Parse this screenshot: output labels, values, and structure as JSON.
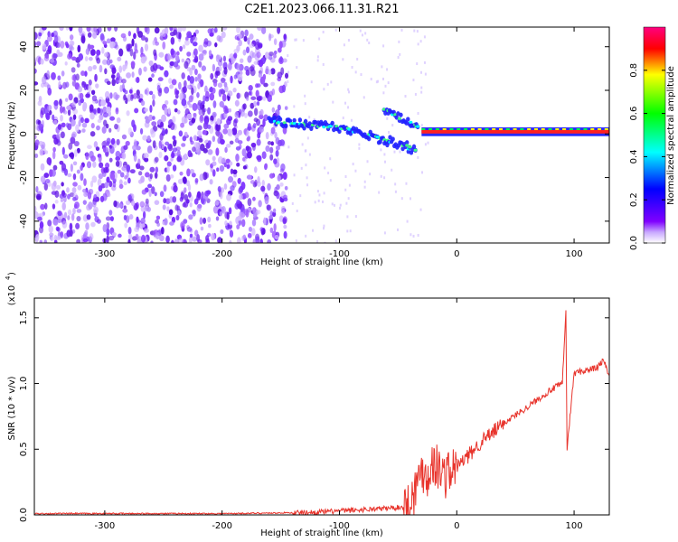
{
  "title": "C2E1.2023.066.11.31.R21",
  "chart_data": [
    {
      "type": "heatmap",
      "xlabel": "Height of straight line (km)",
      "ylabel": "Frequency (Hz)",
      "xlim": [
        -360,
        130
      ],
      "ylim": [
        -50,
        49
      ],
      "xticks": [
        -300,
        -200,
        -100,
        0,
        100
      ],
      "yticks": [
        -40,
        -20,
        0,
        20,
        40
      ],
      "description_free": true,
      "tracks": [
        {
          "x": [
            -160,
            -140,
            -120,
            -100,
            -80,
            -60,
            -45,
            -35
          ],
          "y": [
            6,
            5,
            4,
            3,
            0,
            -3,
            -5,
            -8
          ]
        },
        {
          "x": [
            -62,
            -50,
            -40,
            -32
          ],
          "y": [
            11,
            8,
            5,
            3
          ]
        },
        {
          "x": [
            -30,
            -20,
            -10,
            0,
            20,
            50,
            80,
            100,
            130
          ],
          "y": [
            1,
            1,
            1,
            1,
            1,
            1,
            1,
            1,
            1
          ]
        }
      ],
      "colorbar": {
        "label": "Normalized spectral amplitude",
        "ticks": [
          "0.0",
          "0.2",
          "0.4",
          "0.6",
          "0.8"
        ],
        "range": [
          0,
          1
        ],
        "colormap": [
          "#ffffff",
          "#8000ff",
          "#0000ff",
          "#00ffff",
          "#00ff00",
          "#ffff00",
          "#ff0000",
          "#ff0080"
        ]
      },
      "grid": false
    },
    {
      "type": "line",
      "xlabel": "Height of straight line (km)",
      "ylabel": "SNR (10 * v/v)",
      "scale_label": "(x10",
      "scale_exp": "4",
      "xlim": [
        -360,
        130
      ],
      "ylim": [
        0,
        1.65
      ],
      "xticks": [
        -300,
        -200,
        -100,
        0,
        100
      ],
      "yticks": [
        "0.0",
        "0.5",
        "1.0",
        "1.5"
      ],
      "line_color": "#e8342c",
      "series": [
        {
          "x": [
            -360,
            -300,
            -250,
            -200,
            -150,
            -120,
            -100,
            -80,
            -60,
            -45,
            -40,
            -35,
            -30,
            -25,
            -20,
            -15,
            -10,
            0,
            10,
            20,
            30,
            40,
            60,
            80,
            90,
            93,
            94,
            100,
            110,
            120,
            125,
            130
          ],
          "values": [
            0.01,
            0.01,
            0.01,
            0.01,
            0.015,
            0.02,
            0.03,
            0.04,
            0.05,
            0.06,
            0.1,
            0.2,
            0.35,
            0.3,
            0.4,
            0.35,
            0.3,
            0.37,
            0.45,
            0.55,
            0.62,
            0.7,
            0.82,
            0.95,
            1.0,
            1.55,
            0.5,
            1.08,
            1.1,
            1.12,
            1.18,
            1.05
          ]
        }
      ],
      "grid": false
    }
  ]
}
